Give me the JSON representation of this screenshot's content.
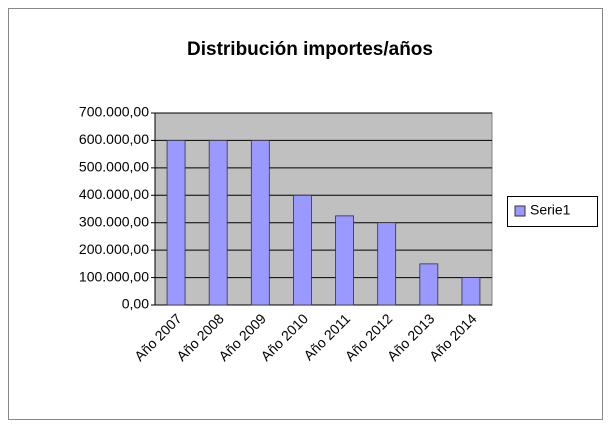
{
  "chart_data": {
    "type": "bar",
    "title": "Distribución importes/años",
    "categories": [
      "Año 2007",
      "Año 2008",
      "Año 2009",
      "Año 2010",
      "Año 2011",
      "Año 2012",
      "Año 2013",
      "Año 2014"
    ],
    "series": [
      {
        "name": "Serie1",
        "color": "#9999ff",
        "values": [
          600000,
          600000,
          600000,
          400000,
          325000,
          300000,
          150000,
          100000
        ]
      }
    ],
    "ylim": [
      0,
      700000
    ],
    "yticks": [
      {
        "value": 0,
        "label": "0,00"
      },
      {
        "value": 100000,
        "label": "100.000,00"
      },
      {
        "value": 200000,
        "label": "200.000,00"
      },
      {
        "value": 300000,
        "label": "300.000,00"
      },
      {
        "value": 400000,
        "label": "400.000,00"
      },
      {
        "value": 500000,
        "label": "500.000,00"
      },
      {
        "value": 600000,
        "label": "600.000,00"
      },
      {
        "value": 700000,
        "label": "700.000,00"
      }
    ],
    "grid": true,
    "legend": "right"
  }
}
